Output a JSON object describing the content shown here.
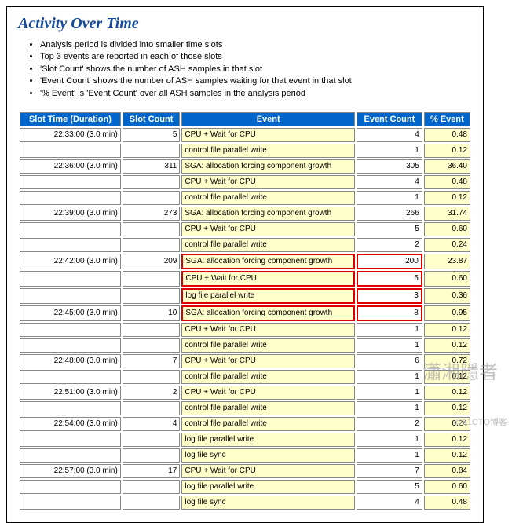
{
  "title": "Activity Over Time",
  "bullets": [
    "Analysis period is divided into smaller time slots",
    "Top 3 events are reported in each of those slots",
    "'Slot Count' shows the number of ASH samples in that slot",
    "'Event Count' shows the number of ASH samples waiting for that event in that slot",
    "'% Event' is 'Event Count' over all ASH samples in the analysis period"
  ],
  "headers": [
    "Slot Time (Duration)",
    "Slot Count",
    "Event",
    "Event Count",
    "% Event"
  ],
  "rows": [
    {
      "st": "22:33:00 (3.0 min)",
      "sc": "5",
      "ev": "CPU + Wait for CPU",
      "ec": "4",
      "pe": "0.48"
    },
    {
      "st": "",
      "sc": "",
      "ev": "control file parallel write",
      "ec": "1",
      "pe": "0.12"
    },
    {
      "st": "22:36:00 (3.0 min)",
      "sc": "311",
      "ev": "SGA: allocation forcing component growth",
      "ec": "305",
      "pe": "36.40"
    },
    {
      "st": "",
      "sc": "",
      "ev": "CPU + Wait for CPU",
      "ec": "4",
      "pe": "0.48"
    },
    {
      "st": "",
      "sc": "",
      "ev": "control file parallel write",
      "ec": "1",
      "pe": "0.12"
    },
    {
      "st": "22:39:00 (3.0 min)",
      "sc": "273",
      "ev": "SGA: allocation forcing component growth",
      "ec": "266",
      "pe": "31.74"
    },
    {
      "st": "",
      "sc": "",
      "ev": "CPU + Wait for CPU",
      "ec": "5",
      "pe": "0.60"
    },
    {
      "st": "",
      "sc": "",
      "ev": "control file parallel write",
      "ec": "2",
      "pe": "0.24"
    },
    {
      "st": "22:42:00 (3.0 min)",
      "sc": "209",
      "ev": "SGA: allocation forcing component growth",
      "ec": "200",
      "pe": "23.87",
      "hl": 1
    },
    {
      "st": "",
      "sc": "",
      "ev": "CPU + Wait for CPU",
      "ec": "5",
      "pe": "0.60",
      "hl": 1
    },
    {
      "st": "",
      "sc": "",
      "ev": "log file parallel write",
      "ec": "3",
      "pe": "0.36",
      "hl": 1
    },
    {
      "st": "22:45:00 (3.0 min)",
      "sc": "10",
      "ev": "SGA: allocation forcing component growth",
      "ec": "8",
      "pe": "0.95",
      "hl": 1
    },
    {
      "st": "",
      "sc": "",
      "ev": "CPU + Wait for CPU",
      "ec": "1",
      "pe": "0.12"
    },
    {
      "st": "",
      "sc": "",
      "ev": "control file parallel write",
      "ec": "1",
      "pe": "0.12"
    },
    {
      "st": "22:48:00 (3.0 min)",
      "sc": "7",
      "ev": "CPU + Wait for CPU",
      "ec": "6",
      "pe": "0.72"
    },
    {
      "st": "",
      "sc": "",
      "ev": "control file parallel write",
      "ec": "1",
      "pe": "0.12"
    },
    {
      "st": "22:51:00 (3.0 min)",
      "sc": "2",
      "ev": "CPU + Wait for CPU",
      "ec": "1",
      "pe": "0.12"
    },
    {
      "st": "",
      "sc": "",
      "ev": "control file parallel write",
      "ec": "1",
      "pe": "0.12"
    },
    {
      "st": "22:54:00 (3.0 min)",
      "sc": "4",
      "ev": "control file parallel write",
      "ec": "2",
      "pe": "0.24"
    },
    {
      "st": "",
      "sc": "",
      "ev": "log file parallel write",
      "ec": "1",
      "pe": "0.12"
    },
    {
      "st": "",
      "sc": "",
      "ev": "log file sync",
      "ec": "1",
      "pe": "0.12"
    },
    {
      "st": "22:57:00 (3.0 min)",
      "sc": "17",
      "ev": "CPU + Wait for CPU",
      "ec": "7",
      "pe": "0.84"
    },
    {
      "st": "",
      "sc": "",
      "ev": "log file parallel write",
      "ec": "5",
      "pe": "0.60"
    },
    {
      "st": "",
      "sc": "",
      "ev": "log file sync",
      "ec": "4",
      "pe": "0.48"
    }
  ],
  "watermark": "瀟湘隱者",
  "credit": "@51CTO博客"
}
